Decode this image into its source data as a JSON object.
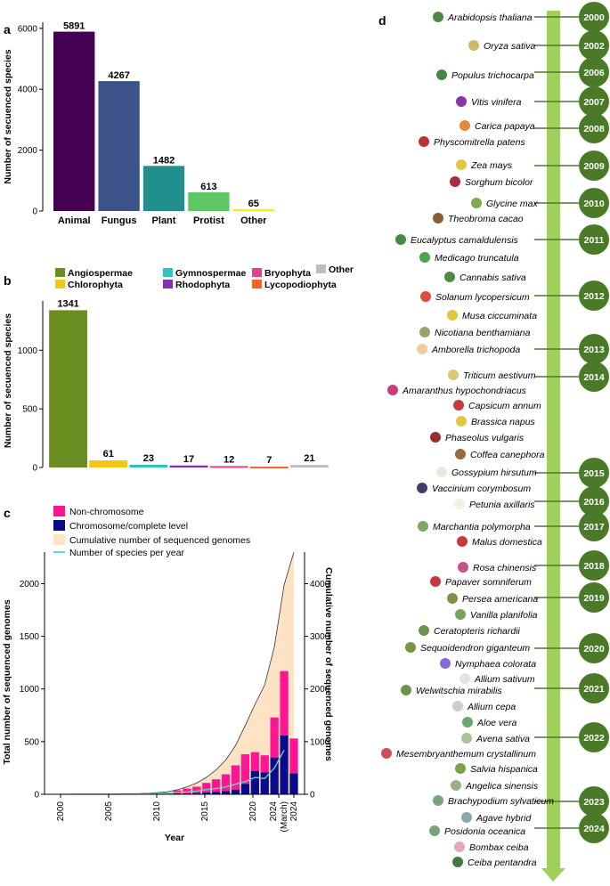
{
  "panels": {
    "a": "a",
    "b": "b",
    "c": "c",
    "d": "d"
  },
  "chart_data": [
    {
      "type": "bar",
      "panel": "a",
      "categories": [
        "Animal",
        "Fungus",
        "Plant",
        "Protist",
        "Other"
      ],
      "values": [
        5891,
        4267,
        1482,
        613,
        65
      ],
      "colors": [
        "#440154",
        "#3b528b",
        "#21908d",
        "#5dc863",
        "#fde725"
      ],
      "ylabel": "Number of secuenced species",
      "ylim": [
        0,
        6200
      ],
      "yticks": [
        0,
        2000,
        4000,
        6000
      ]
    },
    {
      "type": "bar",
      "panel": "b",
      "categories": [
        "Angiospermae",
        "Chlorophyta",
        "Gymnospermae",
        "Rhodophyta",
        "Bryophyta",
        "Lycopodiophyta",
        "Other"
      ],
      "values": [
        1341,
        61,
        23,
        17,
        12,
        7,
        21
      ],
      "colors": [
        "#6b8e23",
        "#f5c518",
        "#2ec4c4",
        "#8e2ab8",
        "#e83e8c",
        "#f26522",
        "#bdbdbd"
      ],
      "ylabel": "Number of secuenced species",
      "ylim": [
        0,
        1420
      ],
      "yticks": [
        0,
        500,
        1000
      ]
    },
    {
      "type": "bar",
      "panel": "c",
      "xlabel": "Year",
      "ylabel": "Total number of sequenced genomes",
      "y2label": "Cumulative number of sequenced genomes",
      "ylim": [
        0,
        2300
      ],
      "y2lim": [
        0,
        4600
      ],
      "yticks": [
        0,
        500,
        1000,
        1500,
        2000
      ],
      "y2ticks": [
        0,
        1000,
        2000,
        3000,
        4000
      ],
      "xticks": [
        "2000",
        "2005",
        "2010",
        "2015",
        "2020",
        "2024\n(March)",
        "2024"
      ],
      "legend": [
        "Non-chromosome",
        "Chromosome/complete level",
        "Cumulative number of sequenced genomes",
        "Number of species per year"
      ],
      "legend_colors": [
        "#ff1493",
        "#0a0a8c",
        "#fde3c4",
        "#5ee0c0"
      ],
      "years": [
        2000,
        2001,
        2002,
        2003,
        2004,
        2005,
        2006,
        2007,
        2008,
        2009,
        2010,
        2011,
        2012,
        2013,
        2014,
        2015,
        2016,
        2017,
        2018,
        2019,
        2020,
        2021,
        2022,
        2023,
        2024
      ],
      "chromosome": [
        1,
        0,
        2,
        0,
        0,
        0,
        1,
        2,
        2,
        3,
        5,
        5,
        8,
        10,
        12,
        18,
        22,
        30,
        45,
        100,
        220,
        210,
        350,
        560,
        200
      ],
      "non_chromosome": [
        0,
        0,
        0,
        0,
        0,
        0,
        1,
        1,
        2,
        3,
        8,
        12,
        30,
        45,
        60,
        90,
        120,
        160,
        230,
        280,
        180,
        160,
        380,
        610,
        330
      ],
      "cumulative": [
        1,
        1,
        3,
        3,
        3,
        3,
        5,
        8,
        12,
        18,
        31,
        48,
        86,
        141,
        213,
        321,
        463,
        653,
        928,
        1308,
        1708,
        2078,
        2808,
        3978,
        4600
      ],
      "species_per_year": [
        1,
        0,
        2,
        0,
        0,
        0,
        1,
        2,
        3,
        4,
        8,
        10,
        18,
        22,
        30,
        45,
        55,
        70,
        95,
        120,
        160,
        150,
        250,
        420,
        0
      ]
    }
  ],
  "timeline": {
    "years": [
      "2000",
      "2002",
      "2006",
      "2007",
      "2008",
      "2009",
      "2010",
      "2011",
      "2012",
      "2013",
      "2014",
      "2015",
      "2016",
      "2017",
      "2018",
      "2019",
      "2020",
      "2021",
      "2022",
      "2023",
      "2024"
    ],
    "species": [
      "Arabidopsis thaliana",
      "Oryza sativa",
      "Populus trichocarpa",
      "Vitis vinifera",
      "Carica papaya",
      "Physcomitrella patens",
      "Zea mays",
      "Sorghum bicolor",
      "Glycine max",
      "Theobroma cacao",
      "Eucalyptus camaldulensis",
      "Medicago truncatula",
      "Cannabis sativa",
      "Solanum lycopersicum",
      "Musa ciccuminata",
      "Nicotiana benthamiana",
      "Amborella trichopoda",
      "Triticum aestivum",
      "Amaranthus hypochondriacus",
      "Capsicum annum",
      "Brassica napus",
      "Phaseolus vulgaris",
      "Coffea canephora",
      "Gossypium hirsutum",
      "Vaccinium corymbosum",
      "Petunia axillaris",
      "Marchantia polymorpha",
      "Malus domestica",
      "Rosa chinensis",
      "Papaver somniferum",
      "Persea americana",
      "Vanilla planifolia",
      "Ceratopteris richardii",
      "Sequoidendron giganteum",
      "Nymphaea colorata",
      "Allium sativum",
      "Welwitschia mirabilis",
      "Allium cepa",
      "Aloe vera",
      "Avena sativa",
      "Mesembryanthemum crystallinum",
      "Salvia hispanica",
      "Angelica sinensis",
      "Brachypodium sylvaticum",
      "Agave hybrid",
      "Posidonia oceanica",
      "Bombax ceiba",
      "Ceiba pentandra"
    ]
  }
}
